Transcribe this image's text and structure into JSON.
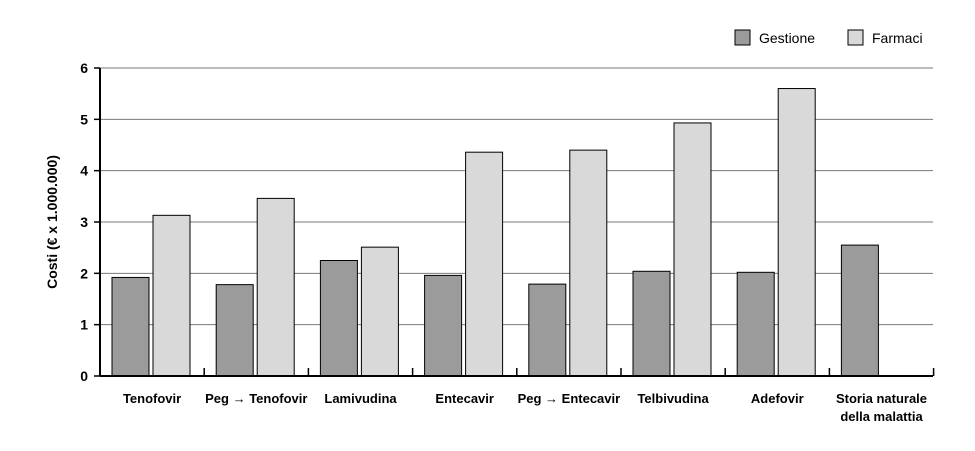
{
  "chart_data": {
    "type": "bar",
    "title": "",
    "xlabel": "",
    "ylabel": "Costi (€ x 1.000.000)",
    "ylim": [
      0,
      6
    ],
    "yticks": [
      0,
      1,
      2,
      3,
      4,
      5,
      6
    ],
    "grid": true,
    "legend_position": "top-right",
    "categories": [
      [
        "Tenofovir"
      ],
      [
        "Peg → Tenofovir"
      ],
      [
        "Lamivudina"
      ],
      [
        "Entecavir"
      ],
      [
        "Peg → Entecavir"
      ],
      [
        "Telbivudina"
      ],
      [
        "Adefovir"
      ],
      [
        "Storia naturale",
        "della malattia"
      ]
    ],
    "series": [
      {
        "name": "Gestione",
        "color": "#9b9b9b",
        "values": [
          1.92,
          1.78,
          2.25,
          1.96,
          1.79,
          2.04,
          2.02,
          2.55
        ]
      },
      {
        "name": "Farmaci",
        "color": "#d9d9d9",
        "values": [
          3.13,
          3.46,
          2.51,
          4.36,
          4.4,
          4.93,
          5.6,
          null
        ]
      }
    ]
  }
}
